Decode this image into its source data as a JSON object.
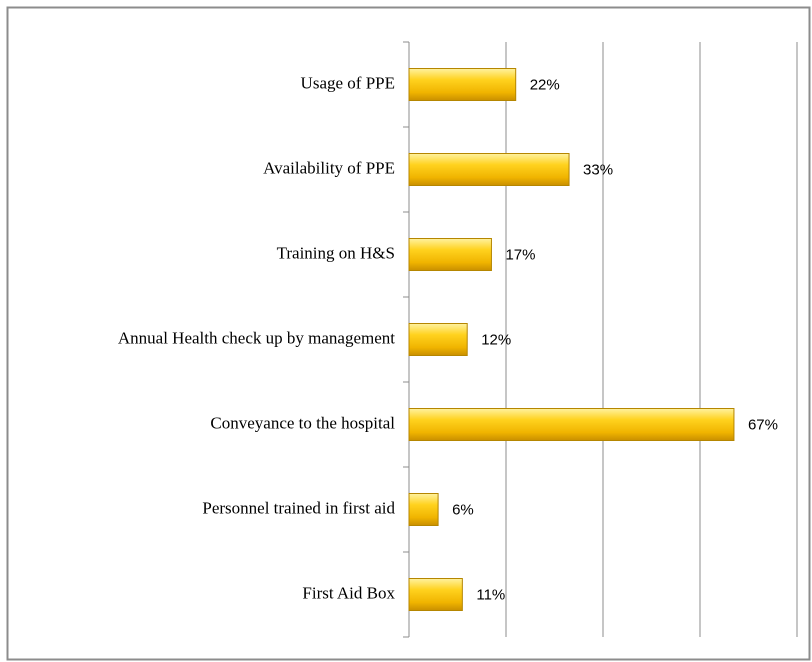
{
  "chart_data": {
    "type": "bar",
    "orientation": "horizontal",
    "categories": [
      "Usage of PPE",
      "Availability of PPE",
      "Training on H&S",
      "Annual Health check up by management",
      "Conveyance to the hospital",
      "Personnel trained in first aid",
      "First Aid Box"
    ],
    "values": [
      22,
      33,
      17,
      12,
      67,
      6,
      11
    ],
    "value_labels": [
      "22%",
      "33%",
      "17%",
      "12%",
      "67%",
      "6%",
      "11%"
    ],
    "color": "#f5c000",
    "xlim": [
      0,
      80
    ],
    "xticks": [
      0,
      20,
      40,
      60,
      80
    ],
    "grid": true
  }
}
